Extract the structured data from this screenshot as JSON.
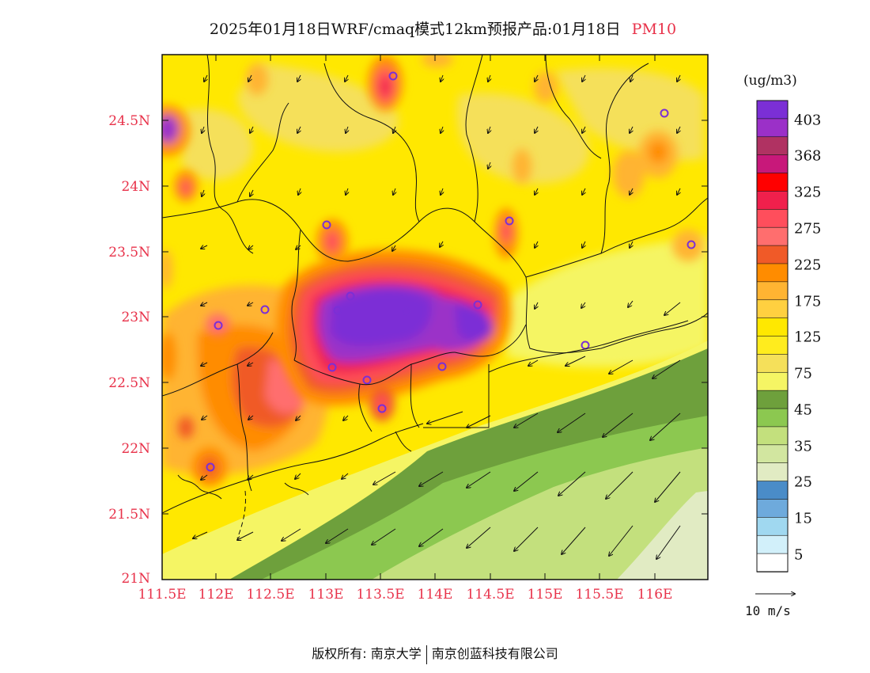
{
  "title": {
    "main": "2025年01月18日WRF/cmaq模式12km预报产品:01月18日",
    "variable": "PM10"
  },
  "map": {
    "lat_ticks": [
      "24.5N",
      "24N",
      "23.5N",
      "23N",
      "22.5N",
      "22N",
      "21.5N",
      "21N"
    ],
    "lon_ticks": [
      "111.5E",
      "112E",
      "112.5E",
      "113E",
      "113.5E",
      "114E",
      "114.5E",
      "115E",
      "115.5E",
      "116E"
    ],
    "lon_range": [
      111.5,
      116.6
    ],
    "lat_range": [
      21.0,
      25.0
    ]
  },
  "colorbar": {
    "unit": "(ug/m3)",
    "labels": [
      "403",
      "368",
      "325",
      "275",
      "225",
      "175",
      "125",
      "75",
      "45",
      "35",
      "25",
      "15",
      "5"
    ],
    "colors_top_to_bottom": [
      "#7b2fd6",
      "#9b30c8",
      "#b03262",
      "#c8187a",
      "#ff0000",
      "#f0204c",
      "#ff4e5c",
      "#ff6e6e",
      "#f05a28",
      "#ff8c00",
      "#ffb432",
      "#ffd040",
      "#ffe800",
      "#ffec1e",
      "#f5e05a",
      "#f5f564",
      "#6ea03c",
      "#8cc850",
      "#c3e07d",
      "#d2e6a0",
      "#e1ebc3",
      "#4a8cc8",
      "#6eaadc",
      "#a0d8f0",
      "#d2f0fa",
      "#ffffff"
    ]
  },
  "wind": {
    "reference_label": "10 m/s"
  },
  "footer": {
    "copyright": "版权所有: 南京大学",
    "company": "南京创蓝科技有限公司"
  }
}
